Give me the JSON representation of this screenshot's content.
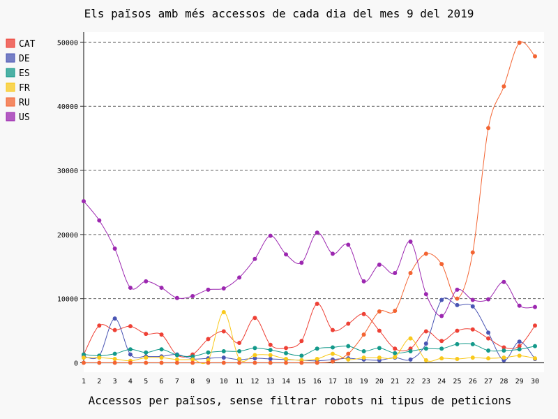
{
  "chart_data": {
    "type": "line",
    "title": "Els països amb més accessos de cada dia del mes 9 del 2019",
    "xlabel": "Accessos per països, sense filtrar robots ni tipus de peticions",
    "ylabel": "",
    "x": [
      1,
      2,
      3,
      4,
      5,
      6,
      7,
      8,
      9,
      10,
      11,
      12,
      13,
      14,
      15,
      16,
      17,
      18,
      19,
      20,
      21,
      22,
      23,
      24,
      25,
      26,
      27,
      28,
      29,
      30
    ],
    "xlim": [
      1,
      30
    ],
    "ylim": [
      0,
      52000
    ],
    "yticks": [
      0,
      10000,
      20000,
      30000,
      40000,
      50000
    ],
    "ytick_labels": [
      "0",
      "10000",
      "20000",
      "30000",
      "40000",
      "50000"
    ],
    "grid": "horizontal dashed",
    "legend_position": "top-left",
    "series": [
      {
        "name": "CAT",
        "color": "#ee4035",
        "values": [
          1300,
          5800,
          5100,
          5700,
          4500,
          4400,
          1200,
          1300,
          3700,
          4900,
          3100,
          7000,
          2800,
          2300,
          3400,
          9200,
          5100,
          6100,
          7600,
          5000,
          2200,
          2200,
          4900,
          3400,
          5000,
          5200,
          3800,
          2400,
          2600,
          5800
        ]
      },
      {
        "name": "DE",
        "color": "#4a55b4",
        "values": [
          1000,
          1100,
          6900,
          1300,
          1000,
          1000,
          1300,
          600,
          700,
          800,
          500,
          700,
          600,
          500,
          400,
          300,
          500,
          700,
          500,
          400,
          800,
          500,
          3000,
          9800,
          9000,
          8800,
          4700,
          400,
          3300,
          600
        ]
      },
      {
        "name": "ES",
        "color": "#13998a",
        "values": [
          1300,
          1100,
          1400,
          2100,
          1600,
          2100,
          1200,
          1000,
          1600,
          1800,
          1800,
          2300,
          2000,
          1500,
          1100,
          2200,
          2400,
          2600,
          1800,
          2300,
          1500,
          1800,
          2200,
          2200,
          2900,
          2900,
          1900,
          1900,
          2100,
          2600
        ]
      },
      {
        "name": "FR",
        "color": "#f9c91c",
        "values": [
          800,
          800,
          600,
          300,
          800,
          800,
          500,
          500,
          400,
          7900,
          600,
          1200,
          1200,
          600,
          400,
          600,
          1400,
          500,
          800,
          800,
          900,
          3800,
          400,
          700,
          600,
          800,
          700,
          800,
          1100,
          700
        ]
      },
      {
        "name": "RU",
        "color": "#f36432",
        "values": [
          0,
          0,
          0,
          0,
          0,
          0,
          0,
          0,
          0,
          0,
          0,
          0,
          0,
          0,
          0,
          0,
          200,
          1400,
          4400,
          8000,
          8100,
          14000,
          17000,
          15400,
          10000,
          17200,
          36600,
          43100,
          49900,
          47800
        ]
      },
      {
        "name": "US",
        "color": "#9c27b0",
        "values": [
          25200,
          22200,
          17800,
          11700,
          12700,
          11700,
          10100,
          10400,
          11400,
          11600,
          13300,
          16200,
          19800,
          16900,
          15600,
          20300,
          17000,
          18400,
          12700,
          15300,
          14000,
          18900,
          10700,
          7300,
          11400,
          9800,
          9900,
          12600,
          8900,
          8700
        ]
      }
    ]
  }
}
